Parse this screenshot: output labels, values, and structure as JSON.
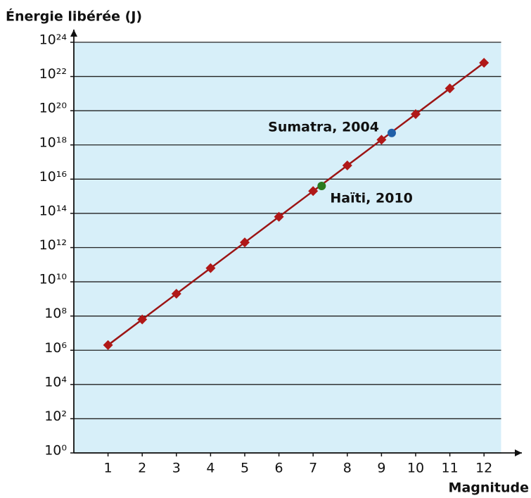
{
  "chart_data": {
    "type": "line",
    "title": "Énergie libérée (J)",
    "xlabel": "Magnitude",
    "x": [
      1,
      2,
      3,
      4,
      5,
      6,
      7,
      8,
      9,
      10,
      11,
      12
    ],
    "series": [
      {
        "color": "#b01818",
        "values": [
          2000000.0,
          63000000.0,
          2000000000.0,
          63000000000.0,
          2000000000000.0,
          63000000000000.0,
          2000000000000000.0,
          6.3e+16,
          2e+18,
          6.3e+19,
          2e+21,
          6.3e+22
        ]
      }
    ],
    "annotations": [
      {
        "text": "Sumatra, 2004",
        "x": 9.3,
        "y": 5e+18,
        "color": "#1f5fa8"
      },
      {
        "text": "Haïti, 2010",
        "x": 7.25,
        "y": 4000000000000000.0,
        "color": "#2a7a1e"
      }
    ],
    "log_y": true,
    "xlim": [
      0,
      12.5
    ],
    "ylim": [
      1,
      1e+24
    ],
    "xticks": [
      1,
      2,
      3,
      4,
      5,
      6,
      7,
      8,
      9,
      10,
      11,
      12
    ],
    "yticks": [
      {
        "value": 1,
        "label": "10⁰"
      },
      {
        "value": 100.0,
        "label": "10²"
      },
      {
        "value": 10000.0,
        "label": "10⁴"
      },
      {
        "value": 1000000.0,
        "label": "10⁶"
      },
      {
        "value": 100000000.0,
        "label": "10⁸"
      },
      {
        "value": 10000000000.0,
        "label": "10¹⁰"
      },
      {
        "value": 1000000000000.0,
        "label": "10¹²"
      },
      {
        "value": 100000000000000.0,
        "label": "10¹⁴"
      },
      {
        "value": 1e+16,
        "label": "10¹⁶"
      },
      {
        "value": 1e+18,
        "label": "10¹⁸"
      },
      {
        "value": 1e+20,
        "label": "10²⁰"
      },
      {
        "value": 1e+22,
        "label": "10²²"
      },
      {
        "value": 1e+24,
        "label": "10²⁴"
      }
    ],
    "grid": true,
    "background": "#d7eff9"
  }
}
